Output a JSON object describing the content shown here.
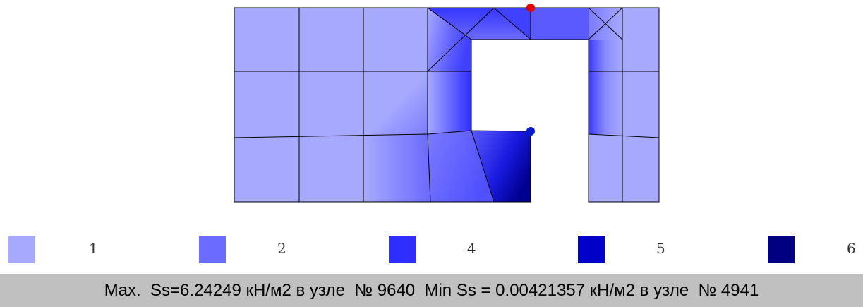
{
  "colors": {
    "base": "#a7a9ff",
    "level_2": "#6b6bff",
    "level_4": "#2e2eff",
    "level_5": "#0000c8",
    "level_6": "#000080",
    "max_marker": "#e00000",
    "min_marker": "#0018d0",
    "mesh_line": "#000000"
  },
  "legend": {
    "items": [
      {
        "label": "1",
        "color": "#a7a9ff"
      },
      {
        "label": "2",
        "color": "#6b6bff"
      },
      {
        "label": "4",
        "color": "#2e2eff"
      },
      {
        "label": "5",
        "color": "#0000c8"
      },
      {
        "label": "6",
        "color": "#000080"
      }
    ]
  },
  "status": {
    "max_text": "Max.  Ss=6.24249 кН/м2 в узле  № 9640",
    "min_text": "Min Ss = 0.00421357 кН/м2 в узле  № 4941"
  }
}
